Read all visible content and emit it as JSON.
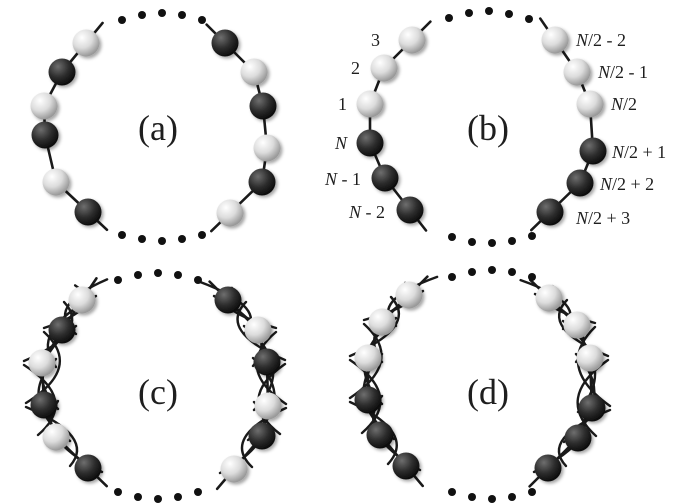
{
  "panels": [
    {
      "id": "a",
      "label": "(a)"
    },
    {
      "id": "b",
      "label": "(b)"
    },
    {
      "id": "c",
      "label": "(c)"
    },
    {
      "id": "d",
      "label": "(d)"
    }
  ],
  "panel_b_site_labels": {
    "left": [
      {
        "parts": [
          {
            "t": "3",
            "i": false
          }
        ]
      },
      {
        "parts": [
          {
            "t": "2",
            "i": false
          }
        ]
      },
      {
        "parts": [
          {
            "t": "1",
            "i": false
          }
        ]
      },
      {
        "parts": [
          {
            "t": "N",
            "i": true
          }
        ]
      },
      {
        "parts": [
          {
            "t": "N",
            "i": true
          },
          {
            "t": " - 1",
            "i": false
          }
        ]
      },
      {
        "parts": [
          {
            "t": "N",
            "i": true
          },
          {
            "t": " - 2",
            "i": false
          }
        ]
      }
    ],
    "right": [
      {
        "parts": [
          {
            "t": "N",
            "i": true
          },
          {
            "t": "/2 - 2",
            "i": false
          }
        ]
      },
      {
        "parts": [
          {
            "t": "N",
            "i": true
          },
          {
            "t": "/2 - 1",
            "i": false
          }
        ]
      },
      {
        "parts": [
          {
            "t": "N",
            "i": true
          },
          {
            "t": "/2",
            "i": false
          }
        ]
      },
      {
        "parts": [
          {
            "t": "N",
            "i": true
          },
          {
            "t": "/2 + 1",
            "i": false
          }
        ]
      },
      {
        "parts": [
          {
            "t": "N",
            "i": true
          },
          {
            "t": "/2 + 2",
            "i": false
          }
        ]
      },
      {
        "parts": [
          {
            "t": "N",
            "i": true
          },
          {
            "t": "/2 + 3",
            "i": false
          }
        ]
      }
    ]
  },
  "bead_patterns": {
    "a": {
      "left": [
        "light",
        "dark",
        "light",
        "dark",
        "light",
        "dark"
      ],
      "right": [
        "dark",
        "light",
        "dark",
        "light",
        "dark",
        "light"
      ]
    },
    "b": {
      "left": [
        "light",
        "light",
        "light",
        "dark",
        "dark",
        "dark"
      ],
      "right": [
        "light",
        "light",
        "light",
        "dark",
        "dark",
        "dark"
      ]
    },
    "c": {
      "left": [
        "light",
        "dark",
        "light",
        "dark",
        "light",
        "dark"
      ],
      "right": [
        "dark",
        "light",
        "dark",
        "light",
        "dark",
        "light"
      ]
    },
    "d": {
      "left": [
        "light",
        "light",
        "light",
        "dark",
        "dark",
        "dark"
      ],
      "right": [
        "light",
        "light",
        "light",
        "dark",
        "dark",
        "dark"
      ]
    }
  },
  "colors": {
    "bead_dark": "#2f2f2f",
    "bead_light": "#dcdcdc",
    "line": "#1a1a1a"
  }
}
